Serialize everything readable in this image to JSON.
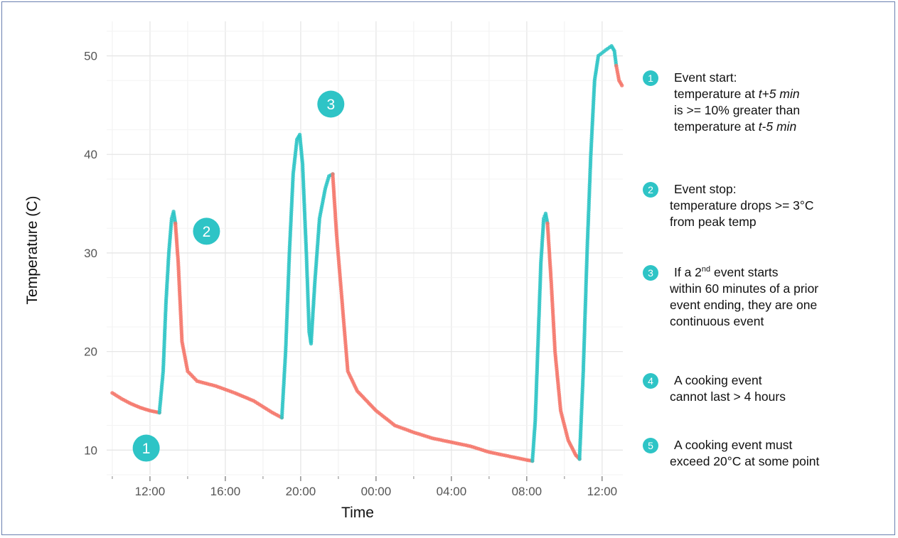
{
  "chart_data": {
    "type": "scatter",
    "xlabel": "Time",
    "ylabel": "Temperature (C)",
    "x_tick_labels": [
      "12:00",
      "16:00",
      "20:00",
      "00:00",
      "04:00",
      "08:00",
      "12:00"
    ],
    "x_ticks_hours": [
      12,
      16,
      20,
      24,
      28,
      32,
      36
    ],
    "xlim_hours": [
      9.7,
      37.1
    ],
    "y_ticks": [
      10,
      20,
      30,
      40,
      50
    ],
    "ylim": [
      7.5,
      53.5
    ],
    "grid": true,
    "colors": {
      "cooking_event": "#2ec4c6",
      "non_event": "#f4776b",
      "marker": "#2ec4c6"
    },
    "segments": [
      {
        "state": "non_event",
        "points": [
          [
            10.0,
            15.8
          ],
          [
            10.5,
            15.2
          ],
          [
            11.0,
            14.7
          ],
          [
            11.5,
            14.3
          ],
          [
            12.0,
            14.0
          ],
          [
            12.5,
            13.8
          ]
        ]
      },
      {
        "state": "cooking_event",
        "points": [
          [
            12.5,
            13.8
          ],
          [
            12.7,
            18.0
          ],
          [
            12.85,
            25.0
          ],
          [
            13.0,
            30.0
          ],
          [
            13.15,
            33.5
          ],
          [
            13.25,
            34.2
          ],
          [
            13.35,
            33.0
          ]
        ]
      },
      {
        "state": "non_event",
        "points": [
          [
            13.35,
            33.0
          ],
          [
            13.5,
            29.0
          ],
          [
            13.7,
            21.0
          ],
          [
            14.0,
            18.0
          ],
          [
            14.5,
            17.0
          ],
          [
            15.5,
            16.5
          ],
          [
            16.5,
            15.8
          ],
          [
            17.5,
            15.0
          ],
          [
            18.5,
            13.8
          ],
          [
            19.0,
            13.3
          ]
        ]
      },
      {
        "state": "cooking_event",
        "points": [
          [
            19.0,
            13.3
          ],
          [
            19.2,
            20.0
          ],
          [
            19.4,
            30.0
          ],
          [
            19.6,
            38.0
          ],
          [
            19.8,
            41.5
          ],
          [
            19.95,
            42.0
          ],
          [
            20.1,
            39.0
          ],
          [
            20.3,
            30.0
          ],
          [
            20.45,
            22.0
          ],
          [
            20.55,
            20.8
          ],
          [
            20.75,
            27.0
          ],
          [
            21.0,
            33.5
          ],
          [
            21.3,
            36.5
          ],
          [
            21.5,
            37.8
          ],
          [
            21.7,
            38.0
          ]
        ]
      },
      {
        "state": "non_event",
        "points": [
          [
            21.7,
            38.0
          ],
          [
            21.9,
            32.0
          ],
          [
            22.2,
            25.0
          ],
          [
            22.5,
            18.0
          ],
          [
            23.0,
            16.0
          ],
          [
            24.0,
            14.0
          ],
          [
            25.0,
            12.5
          ],
          [
            26.0,
            11.8
          ],
          [
            27.0,
            11.2
          ],
          [
            28.0,
            10.8
          ],
          [
            29.0,
            10.4
          ],
          [
            30.0,
            9.8
          ],
          [
            31.0,
            9.4
          ],
          [
            32.0,
            9.0
          ],
          [
            32.3,
            8.9
          ]
        ]
      },
      {
        "state": "cooking_event",
        "points": [
          [
            32.3,
            8.9
          ],
          [
            32.45,
            13.0
          ],
          [
            32.6,
            21.0
          ],
          [
            32.75,
            29.0
          ],
          [
            32.9,
            33.5
          ],
          [
            33.0,
            34.0
          ],
          [
            33.1,
            33.0
          ]
        ]
      },
      {
        "state": "non_event",
        "points": [
          [
            33.1,
            33.0
          ],
          [
            33.3,
            27.0
          ],
          [
            33.5,
            20.0
          ],
          [
            33.8,
            14.0
          ],
          [
            34.2,
            11.0
          ],
          [
            34.6,
            9.5
          ],
          [
            34.8,
            9.1
          ]
        ]
      },
      {
        "state": "cooking_event",
        "points": [
          [
            34.8,
            9.1
          ],
          [
            35.0,
            18.0
          ],
          [
            35.2,
            30.0
          ],
          [
            35.4,
            40.0
          ],
          [
            35.6,
            47.5
          ],
          [
            35.8,
            50.0
          ],
          [
            36.2,
            50.6
          ],
          [
            36.5,
            51.0
          ],
          [
            36.65,
            50.5
          ],
          [
            36.75,
            49.0
          ]
        ]
      },
      {
        "state": "non_event",
        "points": [
          [
            36.75,
            49.0
          ],
          [
            36.9,
            47.5
          ],
          [
            37.05,
            47.0
          ]
        ]
      }
    ],
    "markers": [
      {
        "label": "1",
        "x_hours": 11.8,
        "y": 10.2
      },
      {
        "label": "2",
        "x_hours": 15.0,
        "y": 32.2
      },
      {
        "label": "3",
        "x_hours": 21.6,
        "y": 45.1
      }
    ]
  },
  "legend": {
    "items": [
      {
        "badge": "1",
        "lines": [
          "Event start:",
          "temperature at",
          "t+5 min",
          "is >= 10% greater than",
          "temperature at",
          "t-5 min"
        ]
      },
      {
        "badge": "2",
        "lines": [
          "Event stop:",
          "temperature drops >= 3°C",
          "from peak temp"
        ]
      },
      {
        "badge": "3",
        "lines": [
          "If a 2",
          "nd",
          " event starts",
          "within 60 minutes of a prior",
          "event ending, they are one",
          "continuous event"
        ]
      },
      {
        "badge": "4",
        "lines": [
          "A cooking event",
          "cannot last > 4 hours"
        ]
      },
      {
        "badge": "5",
        "lines": [
          "A cooking event must",
          "exceed 20°C at some point"
        ]
      }
    ]
  }
}
